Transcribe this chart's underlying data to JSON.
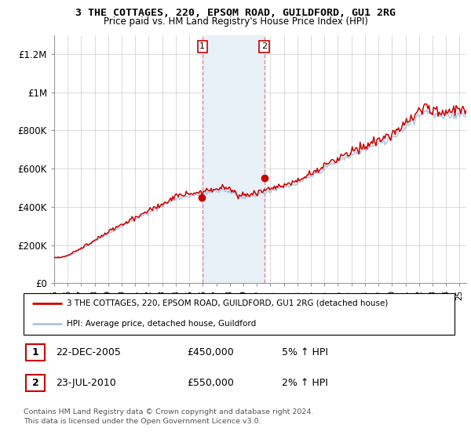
{
  "title1": "3 THE COTTAGES, 220, EPSOM ROAD, GUILDFORD, GU1 2RG",
  "title2": "Price paid vs. HM Land Registry's House Price Index (HPI)",
  "legend_line1": "3 THE COTTAGES, 220, EPSOM ROAD, GUILDFORD, GU1 2RG (detached house)",
  "legend_line2": "HPI: Average price, detached house, Guildford",
  "transaction1": {
    "label": "1",
    "date": "22-DEC-2005",
    "price": 450000,
    "hpi_note": "5% ↑ HPI"
  },
  "transaction2": {
    "label": "2",
    "date": "23-JUL-2010",
    "price": 550000,
    "hpi_note": "2% ↑ HPI"
  },
  "footnote": "Contains HM Land Registry data © Crown copyright and database right 2024.\nThis data is licensed under the Open Government Licence v3.0.",
  "hpi_color": "#aac4e0",
  "price_color": "#cc0000",
  "highlight_color": "#ddeeff",
  "ylim": [
    0,
    1300000
  ],
  "yticks": [
    0,
    200000,
    400000,
    600000,
    800000,
    1000000,
    1200000
  ],
  "ylabel_map": {
    "0": "£0",
    "200000": "£200K",
    "400000": "£400K",
    "600000": "£600K",
    "800000": "£800K",
    "1000000": "£1M",
    "1200000": "£1.2M"
  },
  "t1_year": 2005.97,
  "t2_year": 2010.55,
  "t1_price": 450000,
  "t2_price": 550000,
  "xlim_start": 1995,
  "xlim_end": 2025.5
}
